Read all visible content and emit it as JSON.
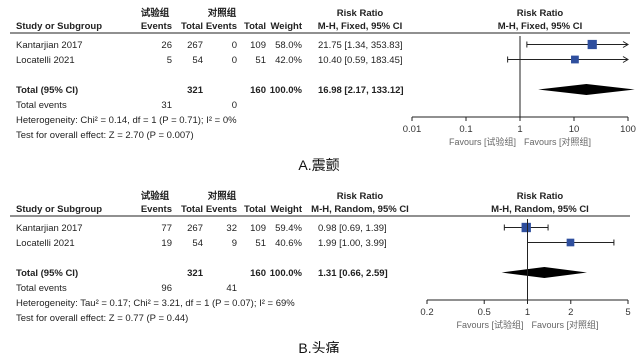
{
  "colors": {
    "text": "#222222",
    "line": "#222222",
    "marker": "#2f4f9e",
    "diamond": "#000000",
    "tick": "#333333",
    "favours": "#666666"
  },
  "chart_data": [
    {
      "type": "forest",
      "caption": "A.震颤",
      "group_header": {
        "exp": "试验组",
        "ctrl": "对照组"
      },
      "columns": [
        "Study or Subgroup",
        "Events",
        "Total",
        "Events",
        "Total",
        "Weight"
      ],
      "effect_header": "Risk Ratio",
      "effect_subheader": "M-H, Fixed, 95% CI",
      "plot_header": "Risk Ratio",
      "plot_subheader": "M-H, Fixed, 95% CI",
      "studies": [
        {
          "name": "Kantarjian 2017",
          "exp_events": "26",
          "exp_total": "267",
          "ctrl_events": "0",
          "ctrl_total": "109",
          "weight": "58.0%",
          "ci_text": "21.75 [1.34, 353.83]",
          "rr": 21.75,
          "lo": 1.34,
          "hi": 353.83,
          "w": 58.0
        },
        {
          "name": "Locatelli 2021",
          "exp_events": "5",
          "exp_total": "54",
          "ctrl_events": "0",
          "ctrl_total": "51",
          "weight": "42.0%",
          "ci_text": "10.40 [0.59, 183.45]",
          "rr": 10.4,
          "lo": 0.59,
          "hi": 183.45,
          "w": 42.0
        }
      ],
      "total": {
        "label": "Total (95% CI)",
        "exp_total": "321",
        "ctrl_total": "160",
        "weight": "100.0%",
        "ci_text": "16.98 [2.17, 133.12]",
        "rr": 16.98,
        "lo": 2.17,
        "hi": 133.12
      },
      "total_events": {
        "label": "Total events",
        "exp": "31",
        "ctrl": "0"
      },
      "heterogeneity": "Heterogeneity: Chi² = 0.14, df = 1 (P = 0.71); I² = 0%",
      "overall_effect": "Test for overall effect: Z = 2.70 (P = 0.007)",
      "scale": "log",
      "xlim": [
        0.01,
        100
      ],
      "ticks": [
        0.01,
        0.1,
        1,
        10,
        100
      ],
      "tick_labels": [
        "0.01",
        "0.1",
        "1",
        "10",
        "100"
      ],
      "favours_left": "Favours [试验组]",
      "favours_right": "Favours [对照组]"
    },
    {
      "type": "forest",
      "caption": "B.头痛",
      "group_header": {
        "exp": "试验组",
        "ctrl": "对照组"
      },
      "columns": [
        "Study or Subgroup",
        "Events",
        "Total",
        "Events",
        "Total",
        "Weight"
      ],
      "effect_header": "Risk Ratio",
      "effect_subheader": "M-H, Random, 95% CI",
      "plot_header": "Risk Ratio",
      "plot_subheader": "M-H, Random, 95% CI",
      "studies": [
        {
          "name": "Kantarjian 2017",
          "exp_events": "77",
          "exp_total": "267",
          "ctrl_events": "32",
          "ctrl_total": "109",
          "weight": "59.4%",
          "ci_text": "0.98 [0.69, 1.39]",
          "rr": 0.98,
          "lo": 0.69,
          "hi": 1.39,
          "w": 59.4
        },
        {
          "name": "Locatelli 2021",
          "exp_events": "19",
          "exp_total": "54",
          "ctrl_events": "9",
          "ctrl_total": "51",
          "weight": "40.6%",
          "ci_text": "1.99 [1.00, 3.99]",
          "rr": 1.99,
          "lo": 1.0,
          "hi": 3.99,
          "w": 40.6
        }
      ],
      "total": {
        "label": "Total (95% CI)",
        "exp_total": "321",
        "ctrl_total": "160",
        "weight": "100.0%",
        "ci_text": "1.31 [0.66, 2.59]",
        "rr": 1.31,
        "lo": 0.66,
        "hi": 2.59
      },
      "total_events": {
        "label": "Total events",
        "exp": "96",
        "ctrl": "41"
      },
      "heterogeneity": "Heterogeneity: Tau² = 0.17; Chi² = 3.21, df = 1 (P = 0.07); I² = 69%",
      "overall_effect": "Test for overall effect: Z = 0.77 (P = 0.44)",
      "scale": "log",
      "xlim": [
        0.2,
        5
      ],
      "ticks": [
        0.2,
        0.5,
        1,
        2,
        5
      ],
      "tick_labels": [
        "0.2",
        "0.5",
        "1",
        "2",
        "5"
      ],
      "favours_left": "Favours [试验组]",
      "favours_right": "Favours [对照组]"
    }
  ]
}
